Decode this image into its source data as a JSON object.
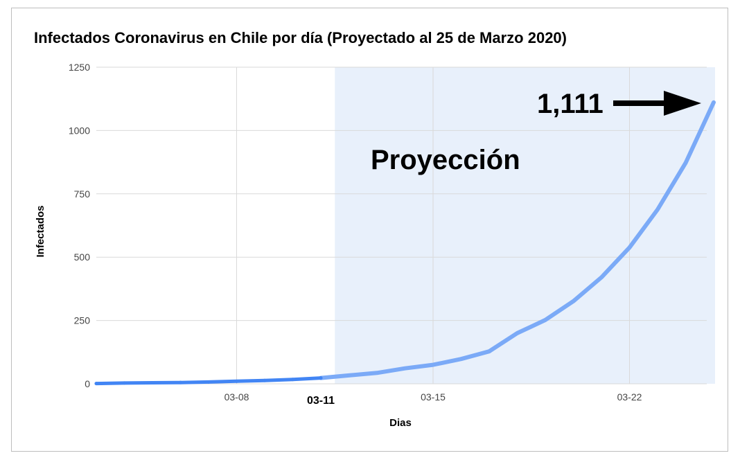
{
  "chart_data": {
    "type": "line",
    "title": "Infectados Coronavirus en Chile por día (Proyectado al 25 de Marzo 2020)",
    "xlabel": "Dias",
    "ylabel": "Infectados",
    "ylim": [
      0,
      1250
    ],
    "yticks": [
      "0",
      "250",
      "500",
      "750",
      "1000",
      "1250"
    ],
    "x_range_days": [
      3,
      25
    ],
    "x": [
      "03-03",
      "03-04",
      "03-05",
      "03-06",
      "03-07",
      "03-08",
      "03-09",
      "03-10",
      "03-11",
      "03-12",
      "03-13",
      "03-14",
      "03-15",
      "03-16",
      "03-17",
      "03-18",
      "03-19",
      "03-20",
      "03-21",
      "03-22",
      "03-23",
      "03-24",
      "03-25"
    ],
    "series": [
      {
        "values": [
          1,
          3,
          4,
          5,
          7,
          10,
          13,
          17,
          23,
          33,
          43,
          61,
          75,
          98,
          128,
          200,
          252,
          326,
          420,
          538,
          688,
          872,
          1111
        ]
      }
    ],
    "xticks": [
      {
        "label": "03-08",
        "day": 8,
        "bold": false
      },
      {
        "label": "03-11",
        "day": 11,
        "bold": true
      },
      {
        "label": "03-15",
        "day": 15,
        "bold": false
      },
      {
        "label": "03-22",
        "day": 22,
        "bold": false
      }
    ],
    "projection_start_day": 11.5,
    "grid": true,
    "colors": {
      "actual": "#4285f4",
      "projected": "#7baaf7",
      "projection_shade": "#e8f0fb",
      "grid": "#d9d9d9"
    },
    "annotations": {
      "projection_label": "Proyección",
      "final_value_label": "1,111"
    }
  }
}
